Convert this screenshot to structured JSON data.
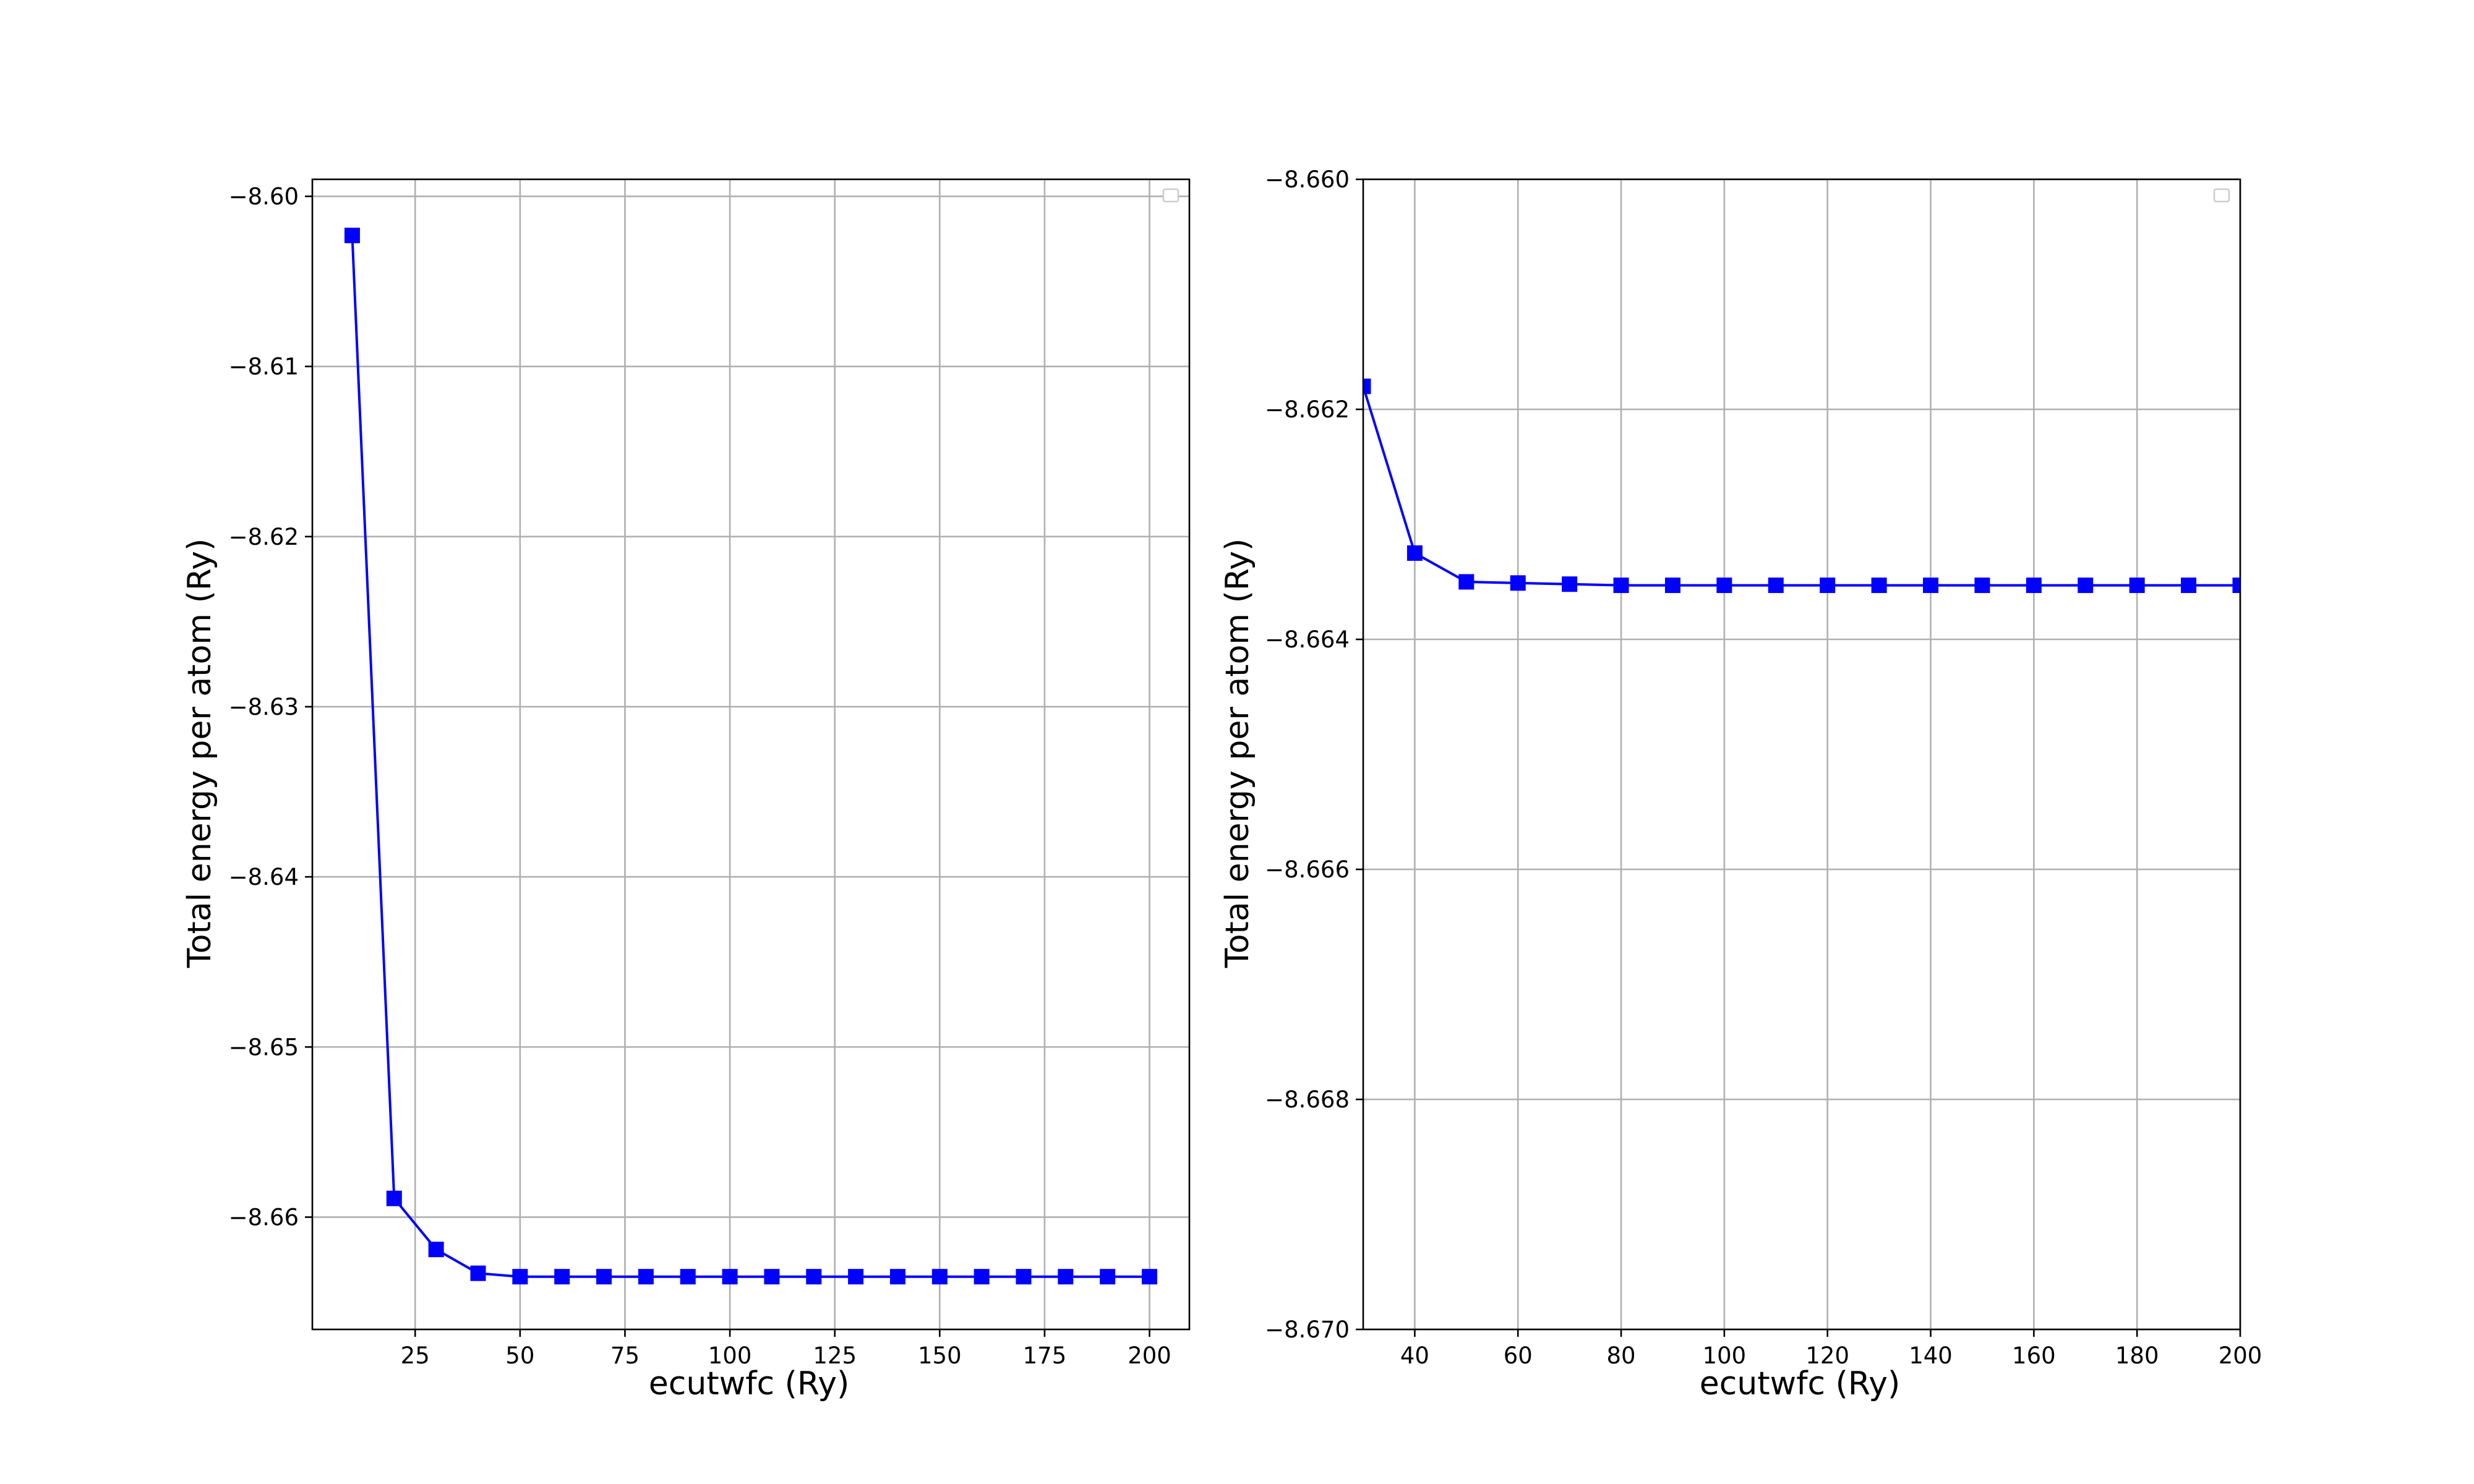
{
  "chart_data": [
    {
      "type": "line",
      "marker": "square",
      "color": "#0000ff",
      "xlabel": "ecutwfc (Ry)",
      "ylabel": "Total energy per atom (Ry)",
      "grid": true,
      "legend": "top-right (empty)",
      "xlim": [
        0.5,
        209.5
      ],
      "ylim": [
        -8.6666,
        -8.599
      ],
      "xticks": [
        25,
        50,
        75,
        100,
        125,
        150,
        175,
        200
      ],
      "xtick_labels": [
        "25",
        "50",
        "75",
        "100",
        "125",
        "150",
        "175",
        "200"
      ],
      "yticks": [
        -8.66,
        -8.65,
        -8.64,
        -8.63,
        -8.62,
        -8.61,
        -8.6
      ],
      "ytick_labels": [
        "−8.66",
        "−8.65",
        "−8.64",
        "−8.63",
        "−8.62",
        "−8.61",
        "−8.60"
      ],
      "series": [
        {
          "name": "",
          "x": [
            10,
            20,
            30,
            40,
            50,
            60,
            70,
            80,
            90,
            100,
            110,
            120,
            130,
            140,
            150,
            160,
            170,
            180,
            190,
            200
          ],
          "y": [
            -8.6023,
            -8.6589,
            -8.6619,
            -8.6633,
            -8.6635,
            -8.6635,
            -8.6635,
            -8.6635,
            -8.6635,
            -8.6635,
            -8.6635,
            -8.6635,
            -8.6635,
            -8.6635,
            -8.6635,
            -8.6635,
            -8.6635,
            -8.6635,
            -8.6635,
            -8.6635
          ]
        }
      ]
    },
    {
      "type": "line",
      "marker": "square",
      "color": "#0000ff",
      "xlabel": "ecutwfc (Ry)",
      "ylabel": "Total energy per atom (Ry)",
      "grid": true,
      "legend": "top-right (empty)",
      "xlim": [
        30,
        200
      ],
      "ylim": [
        -8.67,
        -8.66
      ],
      "xticks": [
        40,
        60,
        80,
        100,
        120,
        140,
        160,
        180,
        200
      ],
      "xtick_labels": [
        "40",
        "60",
        "80",
        "100",
        "120",
        "140",
        "160",
        "180",
        "200"
      ],
      "yticks": [
        -8.67,
        -8.668,
        -8.666,
        -8.664,
        -8.662,
        -8.66
      ],
      "ytick_labels": [
        "−8.670",
        "−8.668",
        "−8.666",
        "−8.664",
        "−8.662",
        "−8.660"
      ],
      "series": [
        {
          "name": "",
          "x": [
            30,
            40,
            50,
            60,
            70,
            80,
            90,
            100,
            110,
            120,
            130,
            140,
            150,
            160,
            170,
            180,
            190,
            200
          ],
          "y": [
            -8.6618,
            -8.66325,
            -8.6635,
            -8.66351,
            -8.66352,
            -8.66353,
            -8.66353,
            -8.66353,
            -8.66353,
            -8.66353,
            -8.66353,
            -8.66353,
            -8.66353,
            -8.66353,
            -8.66353,
            -8.66353,
            -8.66353,
            -8.66353
          ]
        }
      ]
    }
  ]
}
